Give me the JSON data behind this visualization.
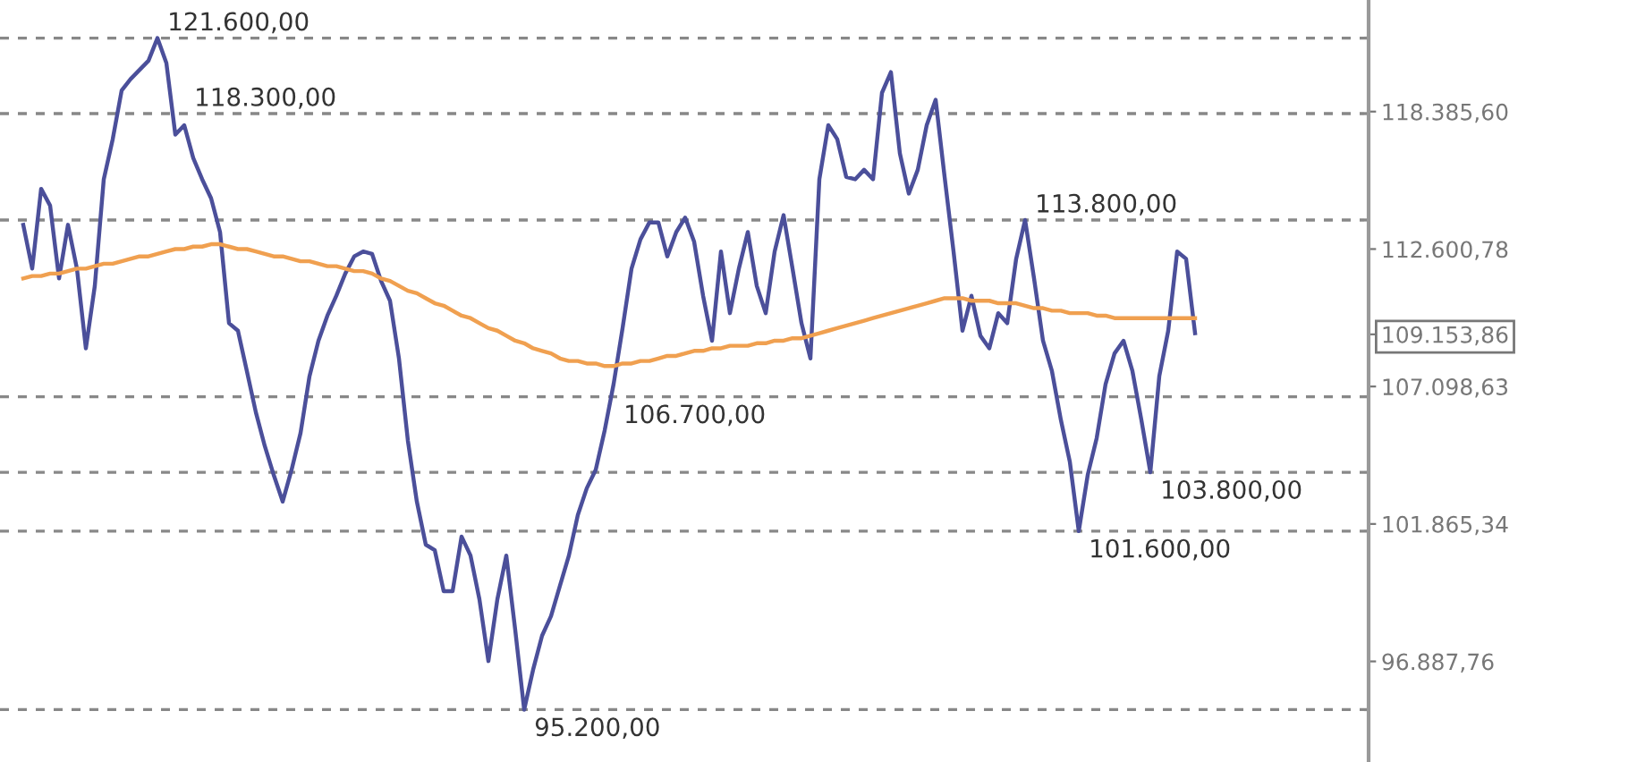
{
  "chart_data": {
    "type": "line",
    "categories": [
      null,
      null,
      null,
      null,
      null,
      null,
      null,
      null,
      null,
      null,
      null,
      null,
      null,
      null,
      null,
      null,
      null,
      null,
      null,
      null,
      null,
      null,
      null,
      null,
      null,
      null,
      null,
      null,
      null,
      null,
      null,
      null,
      null,
      null,
      null,
      null,
      null,
      null,
      null,
      null,
      null,
      null,
      null,
      null,
      null,
      null,
      null,
      null,
      null,
      null,
      null,
      null,
      null,
      null,
      null,
      null,
      null,
      null,
      null,
      null,
      null,
      null,
      null,
      null,
      null,
      null,
      null,
      null,
      null,
      null,
      null,
      null,
      null,
      null,
      null,
      null,
      null,
      null,
      null,
      null,
      null,
      null,
      null,
      null,
      null,
      null,
      null,
      null,
      null,
      null,
      null,
      null,
      null,
      null,
      null,
      null,
      null,
      null,
      null,
      null,
      null,
      null,
      null,
      null,
      null,
      null,
      null,
      null,
      null,
      null,
      null,
      null,
      null,
      null,
      null,
      null,
      null,
      null,
      null,
      null,
      null,
      null,
      null,
      null,
      null,
      null,
      null,
      null,
      null,
      null,
      null,
      null
    ],
    "series": [
      {
        "color": "#4b4f9a",
        "values": [
          113600,
          111800,
          115100,
          114400,
          111400,
          113600,
          111800,
          108600,
          111100,
          115500,
          117200,
          119300,
          119800,
          120200,
          120600,
          121600,
          120500,
          117400,
          117800,
          116400,
          115500,
          114700,
          113300,
          109600,
          109300,
          107700,
          106100,
          104800,
          103700,
          102700,
          103900,
          105300,
          107500,
          108900,
          109900,
          110700,
          111600,
          112300,
          112500,
          112400,
          111300,
          110500,
          108200,
          105000,
          102700,
          101100,
          100900,
          99400,
          99400,
          101400,
          100700,
          99100,
          96900,
          99100,
          100700,
          98000,
          95200,
          96600,
          97800,
          98500,
          99600,
          100700,
          102200,
          103200,
          103900,
          105400,
          107200,
          109400,
          111800,
          113000,
          113700,
          113700,
          112300,
          113300,
          113900,
          112900,
          110700,
          108900,
          112500,
          110000,
          111800,
          113300,
          111100,
          110000,
          112500,
          114000,
          111800,
          109600,
          108200,
          115500,
          117800,
          117200,
          115600,
          115500,
          115900,
          115500,
          119200,
          120100,
          116600,
          114900,
          115900,
          117800,
          118900,
          115600,
          112500,
          109300,
          110700,
          109100,
          108600,
          110000,
          109600,
          112200,
          113800,
          111400,
          108900,
          107700,
          105800,
          104200,
          101600,
          103700,
          105100,
          107200,
          108400,
          108900,
          107700,
          105800,
          103800,
          107500,
          109300,
          112500,
          112200,
          109200
        ]
      },
      {
        "color": "#f0a050",
        "values": [
          111400,
          111500,
          111500,
          111600,
          111600,
          111700,
          111800,
          111800,
          111900,
          112000,
          112000,
          112100,
          112200,
          112300,
          112300,
          112400,
          112500,
          112600,
          112600,
          112700,
          112700,
          112800,
          112800,
          112700,
          112600,
          112600,
          112500,
          112400,
          112300,
          112300,
          112200,
          112100,
          112100,
          112000,
          111900,
          111900,
          111800,
          111700,
          111700,
          111600,
          111400,
          111300,
          111100,
          110900,
          110800,
          110600,
          110400,
          110300,
          110100,
          109900,
          109800,
          109600,
          109400,
          109300,
          109100,
          108900,
          108800,
          108600,
          108500,
          108400,
          108200,
          108100,
          108100,
          108000,
          108000,
          107900,
          107900,
          108000,
          108000,
          108100,
          108100,
          108200,
          108300,
          108300,
          108400,
          108500,
          108500,
          108600,
          108600,
          108700,
          108700,
          108700,
          108800,
          108800,
          108900,
          108900,
          109000,
          109000,
          109100,
          109200,
          109300,
          109400,
          109500,
          109600,
          109700,
          109800,
          109900,
          110000,
          110100,
          110200,
          110300,
          110400,
          110500,
          110600,
          110600,
          110600,
          110500,
          110500,
          110500,
          110400,
          110400,
          110400,
          110300,
          110200,
          110200,
          110100,
          110100,
          110000,
          110000,
          110000,
          109900,
          109900,
          109800,
          109800,
          109800,
          109800,
          109800,
          109800,
          109800,
          109800,
          109800,
          109800
        ]
      }
    ],
    "log": true,
    "ylim": [
      93400,
      123300
    ],
    "yticks": [
      {
        "value": 118385.6,
        "label": "118.385,60"
      },
      {
        "value": 112600.78,
        "label": "112.600,78"
      },
      {
        "value": 109153.86,
        "label": "109.153,86"
      },
      {
        "value": 107098.63,
        "label": "107.098,63"
      },
      {
        "value": 101865.34,
        "label": "101.865,34"
      },
      {
        "value": 96887.76,
        "label": "96.887,76"
      }
    ],
    "ref_lines": [
      {
        "axis": "y",
        "value": 121600,
        "label": "121.600,00",
        "color": "#888888",
        "line_style": "dashed"
      },
      {
        "axis": "y",
        "value": 118300,
        "label": "118.300,00",
        "color": "#888888",
        "line_style": "dashed"
      },
      {
        "axis": "y",
        "value": 113800,
        "label": "113.800,00",
        "color": "#888888",
        "line_style": "dashed"
      },
      {
        "axis": "y",
        "value": 106700,
        "label": "106.700,00",
        "color": "#888888",
        "line_style": "dashed"
      },
      {
        "axis": "y",
        "value": 103800,
        "label": "103.800,00",
        "color": "#888888",
        "line_style": "dashed"
      },
      {
        "axis": "y",
        "value": 101600,
        "label": "101.600,00",
        "color": "#888888",
        "line_style": "dashed"
      },
      {
        "axis": "y",
        "value": 95200,
        "label": "95.200,00",
        "color": "#888888",
        "line_style": "dashed"
      }
    ],
    "grid": false,
    "tick_labels": "y",
    "legend": false
  }
}
